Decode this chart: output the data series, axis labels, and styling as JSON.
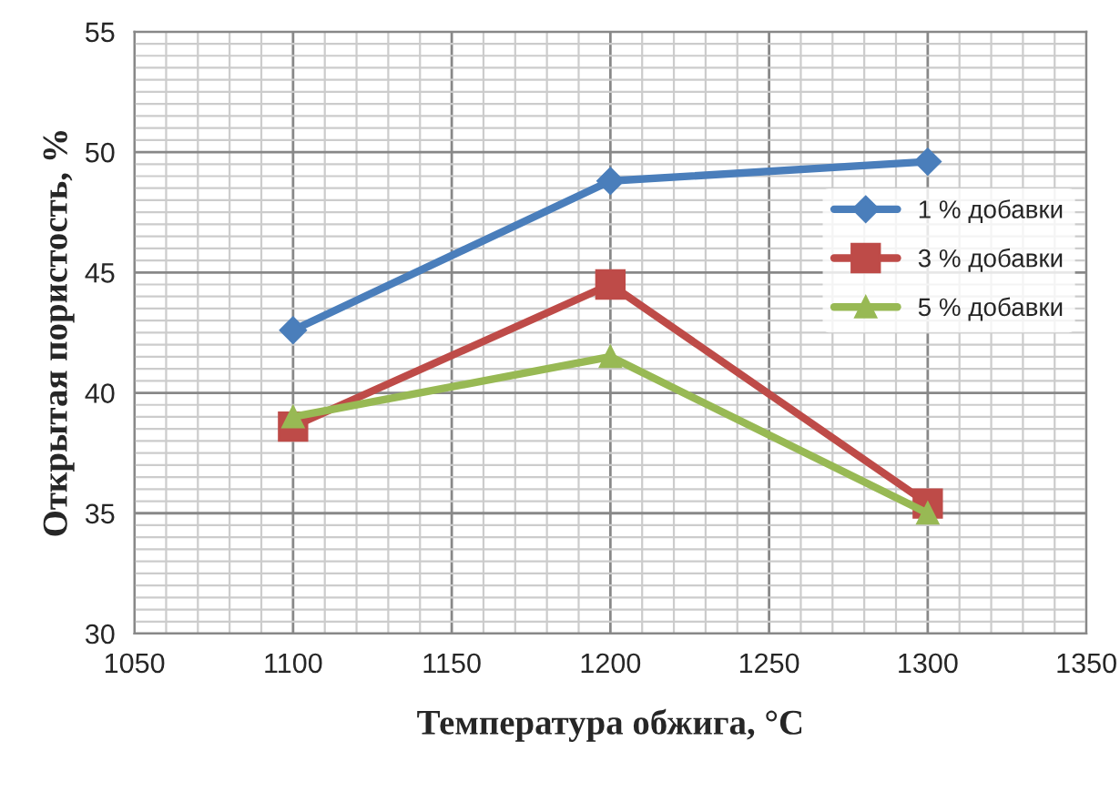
{
  "chart_data": {
    "type": "line",
    "xlabel": "Температура обжига, °C",
    "ylabel": "Открытая пористость, %",
    "x": [
      1100,
      1200,
      1300
    ],
    "series": [
      {
        "name": "1 % добавки",
        "color": "#4a7ebb",
        "values": [
          42.6,
          48.8,
          49.6
        ],
        "marker": "diamond"
      },
      {
        "name": "3 % добавки",
        "color": "#be4b48",
        "values": [
          38.6,
          44.5,
          35.4
        ],
        "marker": "square"
      },
      {
        "name": "5 % добавки",
        "color": "#98b954",
        "values": [
          39.0,
          41.5,
          35.0
        ],
        "marker": "triangle"
      }
    ],
    "xlim": [
      1050,
      1350
    ],
    "xticks": [
      1050,
      1100,
      1150,
      1200,
      1250,
      1300,
      1350
    ],
    "ylim": [
      30,
      55
    ],
    "yticks": [
      30,
      35,
      40,
      45,
      50,
      55
    ],
    "grid": true,
    "legend": "right",
    "line_style": "solid"
  }
}
